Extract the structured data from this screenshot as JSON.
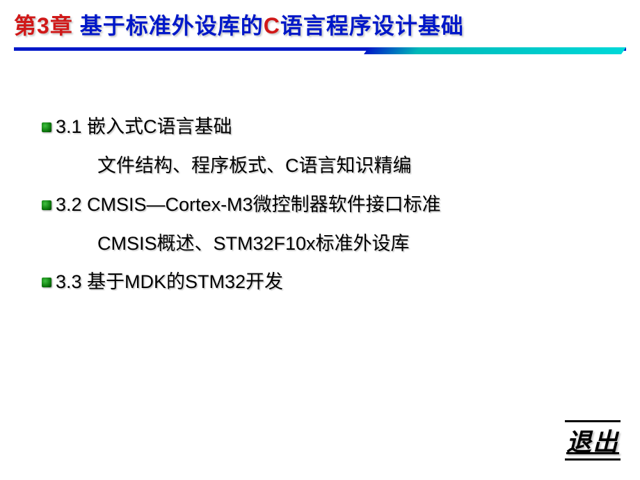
{
  "title": {
    "part1": "第",
    "part2": "3",
    "part3": "章 基于标准外设库的",
    "part4": "C",
    "part5": "语言程序设计基础"
  },
  "colors": {
    "title_red": "#d01818",
    "title_blue": "#0018c8",
    "divider_blue": "#0018c8",
    "divider_cyan": "#00d8d8",
    "bullet_green": "#108010",
    "text_black": "#000000",
    "background": "#ffffff"
  },
  "sections": [
    {
      "heading": "3.1  嵌入式C语言基础",
      "sub": "文件结构、程序板式、C语言知识精编"
    },
    {
      "heading": "3.2  CMSIS—Cortex-M3微控制器软件接口标准",
      "sub": "CMSIS概述、STM32F10x标准外设库"
    },
    {
      "heading": "3.3  基于MDK的STM32开发",
      "sub": null
    }
  ],
  "exit_label": "退出",
  "typography": {
    "title_fontsize": 32,
    "body_fontsize": 27,
    "exit_fontsize": 36
  }
}
